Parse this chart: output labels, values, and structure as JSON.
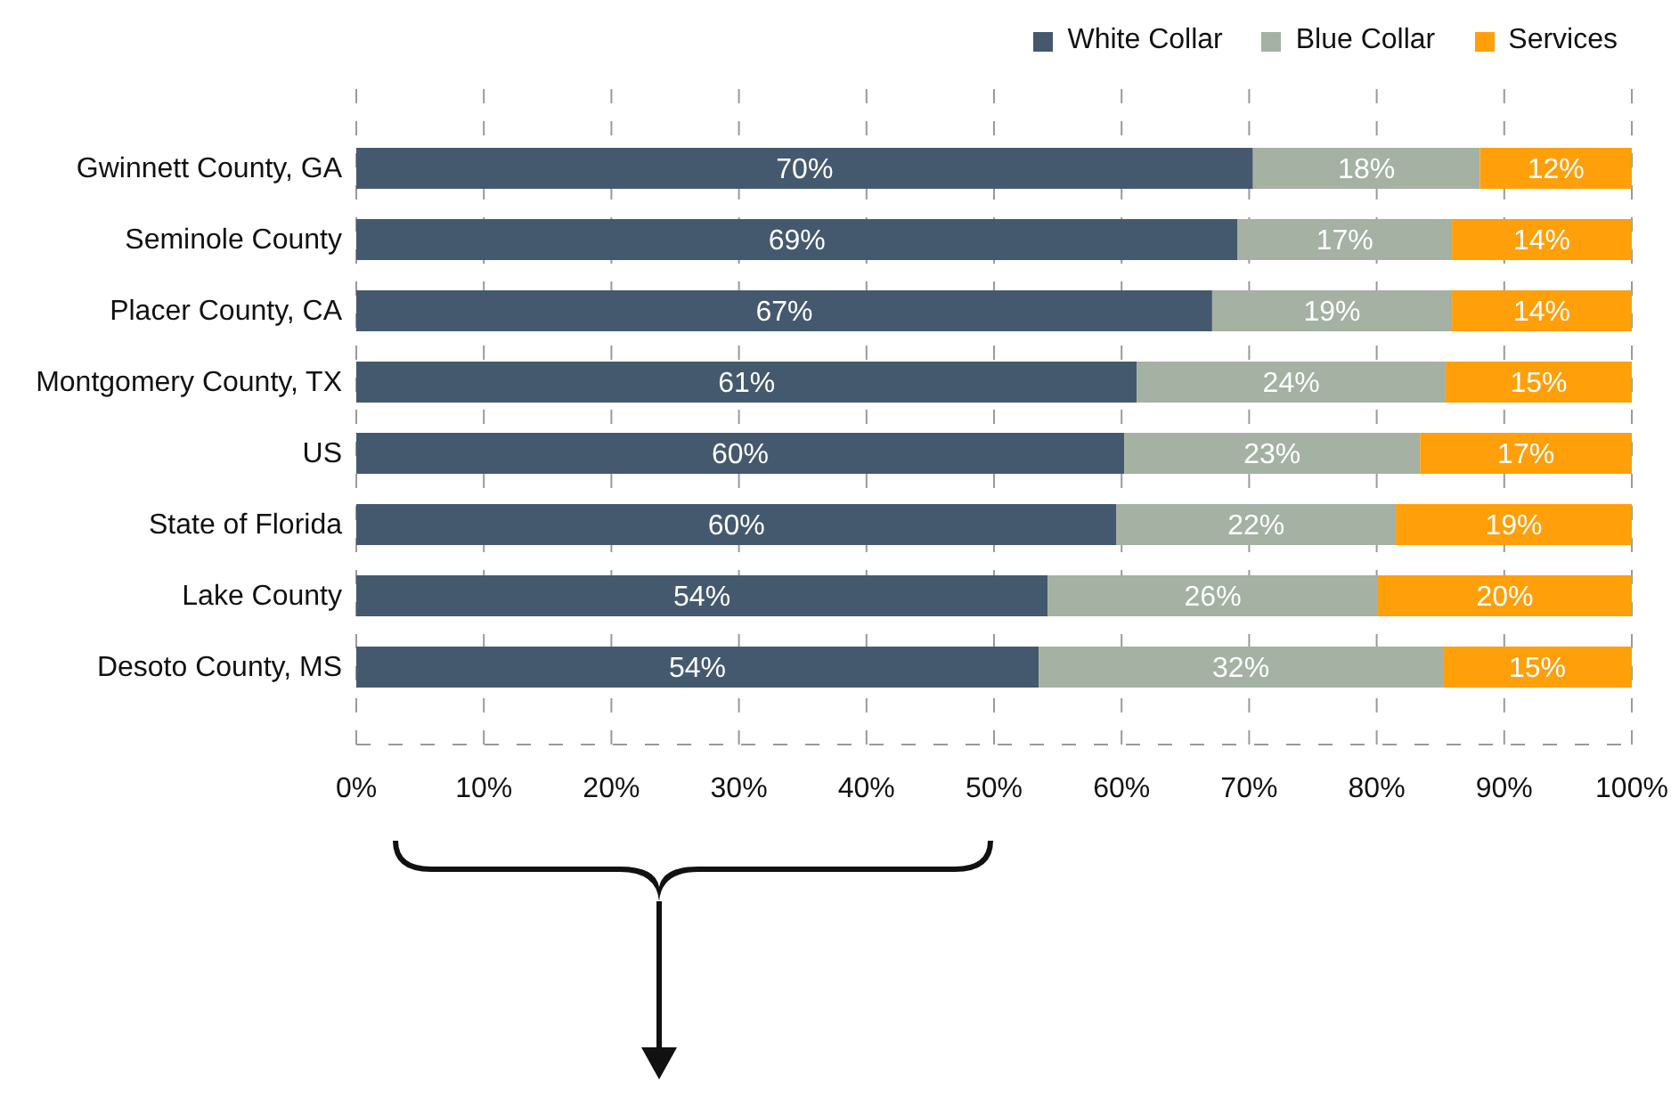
{
  "chart_data": {
    "type": "bar",
    "orientation": "horizontal",
    "stacked": true,
    "categories": [
      "Gwinnett County, GA",
      "Seminole County",
      "Placer County, CA",
      "Montgomery County, TX",
      "US",
      "State of Florida",
      "Lake County",
      "Desoto County, MS"
    ],
    "series": [
      {
        "name": "White Collar",
        "color": "#44596e",
        "values": [
          70.3,
          69.1,
          67.1,
          61.2,
          60.2,
          59.6,
          54.2,
          53.5
        ],
        "value_labels": [
          "70%",
          "69%",
          "67%",
          "61%",
          "60%",
          "60%",
          "54%",
          "54%"
        ]
      },
      {
        "name": "Blue Collar",
        "color": "#a4b1a3",
        "values": [
          17.8,
          16.8,
          18.8,
          24.2,
          23.2,
          21.9,
          25.9,
          31.7
        ],
        "value_labels": [
          "18%",
          "17%",
          "19%",
          "24%",
          "23%",
          "22%",
          "26%",
          "32%"
        ]
      },
      {
        "name": "Services",
        "color": "#ff9f0a",
        "values": [
          11.9,
          14.1,
          14.1,
          14.6,
          16.6,
          18.5,
          19.9,
          14.8
        ],
        "value_labels": [
          "12%",
          "14%",
          "14%",
          "15%",
          "17%",
          "19%",
          "20%",
          "15%"
        ]
      }
    ],
    "xlim": [
      0,
      100
    ],
    "xticks": [
      {
        "value": 0,
        "label": "0%"
      },
      {
        "value": 10,
        "label": "10%"
      },
      {
        "value": 20,
        "label": "20%"
      },
      {
        "value": 30,
        "label": "30%"
      },
      {
        "value": 40,
        "label": "40%"
      },
      {
        "value": 50,
        "label": "50%"
      },
      {
        "value": 60,
        "label": "60%"
      },
      {
        "value": 70,
        "label": "70%"
      },
      {
        "value": 80,
        "label": "80%"
      },
      {
        "value": 90,
        "label": "90%"
      },
      {
        "value": 100,
        "label": "100%"
      }
    ],
    "grid": "x",
    "legend": "top right"
  }
}
